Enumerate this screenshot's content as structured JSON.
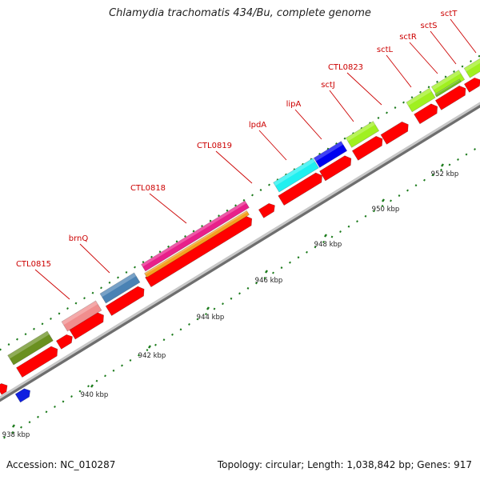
{
  "title": "Chlamydia trachomatis 434/Bu, complete genome",
  "footer": {
    "accession": "Accession: NC_010287",
    "summary": "Topology: circular; Length: 1,038,842 bp; Genes: 917"
  },
  "colors": {
    "backbone": "#a8a8a8",
    "tick": "#1a7a1a",
    "label": "#cc0000",
    "cds_reverse": "#ff0000"
  },
  "ticks": [
    {
      "label": "938 kbp"
    },
    {
      "label": "940 kbp"
    },
    {
      "label": "942 kbp"
    },
    {
      "label": "944 kbp"
    },
    {
      "label": "946 kbp"
    },
    {
      "label": "948 kbp"
    },
    {
      "label": "950 kbp"
    },
    {
      "label": "952 kbp"
    }
  ],
  "gene_labels": [
    "CTL0815",
    "brnQ",
    "CTL0818",
    "CTL0819",
    "lpdA",
    "lipA",
    "sctJ",
    "CTL0823",
    "sctL",
    "sctR",
    "sctS",
    "sctT"
  ],
  "features": [
    {
      "name": "CTL0815",
      "color": "#f08e8e"
    },
    {
      "name": "brnQ",
      "color": "#4a82b4"
    },
    {
      "name": "CTL0818",
      "color": "#e8208a"
    },
    {
      "name": "CTL0818-orange",
      "color": "#f4a020"
    },
    {
      "name": "lpdA",
      "color": "#20f0f0"
    },
    {
      "name": "lipA",
      "color": "#0000f0"
    },
    {
      "name": "sctJ",
      "color": "#a0f020"
    },
    {
      "name": "sctL",
      "color": "#a0f020"
    },
    {
      "name": "sctR",
      "color": "#70c020"
    },
    {
      "name": "sctS",
      "color": "#a0f020"
    },
    {
      "name": "olive",
      "color": "#6a9020"
    },
    {
      "name": "blue-small",
      "color": "#1020e0"
    }
  ]
}
